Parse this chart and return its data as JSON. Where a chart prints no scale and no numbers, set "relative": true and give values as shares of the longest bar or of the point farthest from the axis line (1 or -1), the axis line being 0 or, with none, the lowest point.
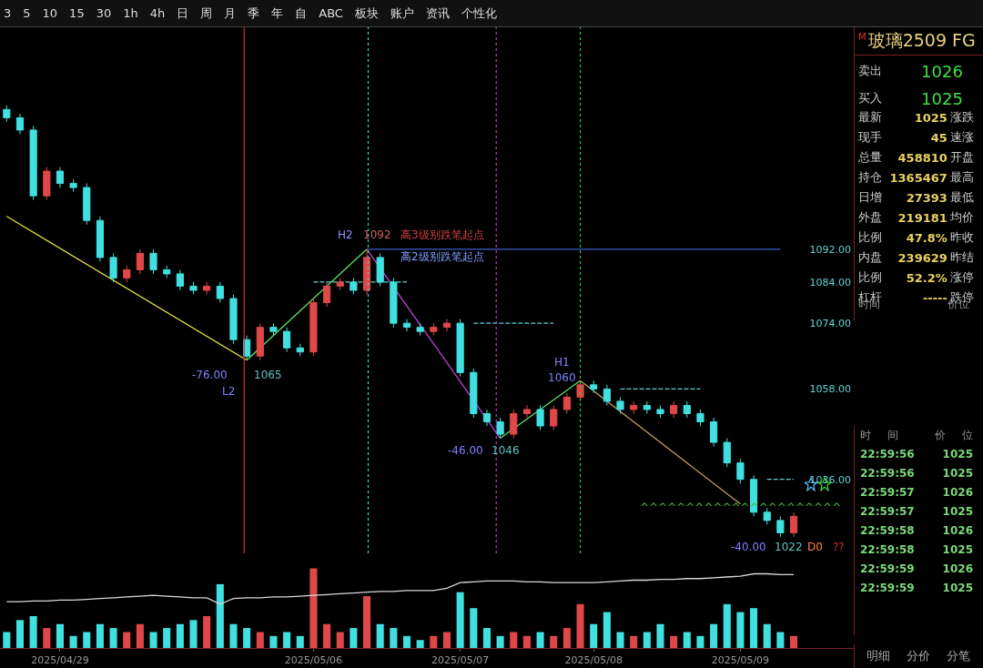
{
  "chart_data": [
    {
      "type": "other",
      "annotations": [
        "3",
        "5",
        "10",
        "15",
        "30",
        "1h",
        "4h",
        "日",
        "周",
        "月",
        "季",
        "年",
        "自",
        "ABC",
        "板块",
        "账户",
        "资讯",
        "个性化"
      ]
    },
    {
      "type": "candlestick",
      "categories": [
        null,
        null,
        null,
        null,
        null,
        null,
        null,
        null,
        null,
        null,
        null,
        null,
        null,
        null,
        null,
        null,
        null,
        null,
        null,
        null,
        null,
        null,
        null,
        null,
        null,
        null,
        null,
        null,
        null,
        null,
        null,
        null,
        null,
        null,
        null,
        null,
        null,
        null,
        null,
        null,
        null,
        null,
        null,
        null,
        null,
        null,
        null,
        null,
        null,
        null,
        null,
        null,
        null,
        null,
        null,
        null,
        null,
        null,
        null,
        null
      ],
      "ohlc": [
        [
          1126,
          1127,
          1123,
          1124
        ],
        [
          1124,
          1125,
          1120,
          1121
        ],
        [
          1121,
          1122,
          1104,
          1105
        ],
        [
          1105,
          1112,
          1104,
          1111
        ],
        [
          1111,
          1112,
          1107,
          1108
        ],
        [
          1108,
          1109,
          1106,
          1107
        ],
        [
          1107,
          1108,
          1098,
          1099
        ],
        [
          1099,
          1100,
          1089,
          1090
        ],
        [
          1090,
          1091,
          1084,
          1085
        ],
        [
          1085,
          1088,
          1084,
          1087
        ],
        [
          1087,
          1092,
          1086,
          1091
        ],
        [
          1091,
          1092,
          1086,
          1087
        ],
        [
          1087,
          1088,
          1085,
          1086
        ],
        [
          1086,
          1087,
          1082,
          1083
        ],
        [
          1083,
          1084,
          1081,
          1082
        ],
        [
          1082,
          1084,
          1081,
          1083
        ],
        [
          1083,
          1084,
          1079,
          1080
        ],
        [
          1080,
          1081,
          1069,
          1070
        ],
        [
          1070,
          1071,
          1065,
          1066
        ],
        [
          1066,
          1074,
          1065,
          1073
        ],
        [
          1073,
          1074,
          1071,
          1072
        ],
        [
          1072,
          1073,
          1067,
          1068
        ],
        [
          1068,
          1069,
          1066,
          1067
        ],
        [
          1067,
          1080,
          1066,
          1079
        ],
        [
          1079,
          1084,
          1078,
          1083
        ],
        [
          1083,
          1085,
          1082,
          1084
        ],
        [
          1084,
          1085,
          1081,
          1082
        ],
        [
          1082,
          1092,
          1081,
          1090
        ],
        [
          1090,
          1091,
          1083,
          1084
        ],
        [
          1084,
          1085,
          1073,
          1074
        ],
        [
          1074,
          1075,
          1072,
          1073
        ],
        [
          1073,
          1074,
          1071,
          1072
        ],
        [
          1072,
          1074,
          1071,
          1073
        ],
        [
          1073,
          1075,
          1072,
          1074
        ],
        [
          1074,
          1075,
          1061,
          1062
        ],
        [
          1062,
          1063,
          1051,
          1052
        ],
        [
          1052,
          1053,
          1049,
          1050
        ],
        [
          1050,
          1051,
          1046,
          1047
        ],
        [
          1047,
          1053,
          1046,
          1052
        ],
        [
          1052,
          1054,
          1051,
          1053
        ],
        [
          1053,
          1054,
          1048,
          1049
        ],
        [
          1049,
          1054,
          1048,
          1053
        ],
        [
          1053,
          1057,
          1052,
          1056
        ],
        [
          1056,
          1060,
          1055,
          1059
        ],
        [
          1059,
          1060,
          1057,
          1058
        ],
        [
          1058,
          1059,
          1054,
          1055
        ],
        [
          1055,
          1056,
          1052,
          1053
        ],
        [
          1053,
          1055,
          1052,
          1054
        ],
        [
          1054,
          1055,
          1052,
          1053
        ],
        [
          1053,
          1054,
          1051,
          1052
        ],
        [
          1052,
          1055,
          1051,
          1054
        ],
        [
          1054,
          1055,
          1051,
          1052
        ],
        [
          1052,
          1053,
          1049,
          1050
        ],
        [
          1050,
          1051,
          1044,
          1045
        ],
        [
          1045,
          1046,
          1039,
          1040
        ],
        [
          1040,
          1041,
          1035,
          1036
        ],
        [
          1036,
          1037,
          1027,
          1028
        ],
        [
          1028,
          1029,
          1025,
          1026
        ],
        [
          1026,
          1027,
          1022,
          1023
        ],
        [
          1023,
          1028,
          1022,
          1027
        ]
      ],
      "colors": [
        "#40e0e0",
        "#40e0e0",
        "#40e0e0",
        "#e04848",
        "#40e0e0",
        "#40e0e0",
        "#40e0e0",
        "#40e0e0",
        "#40e0e0",
        "#e04848",
        "#e04848",
        "#40e0e0",
        "#40e0e0",
        "#40e0e0",
        "#40e0e0",
        "#e04848",
        "#40e0e0",
        "#40e0e0",
        "#40e0e0",
        "#e04848",
        "#40e0e0",
        "#40e0e0",
        "#40e0e0",
        "#e04848",
        "#e04848",
        "#e04848",
        "#40e0e0",
        "#e04848",
        "#40e0e0",
        "#40e0e0",
        "#40e0e0",
        "#40e0e0",
        "#e04848",
        "#e04848",
        "#40e0e0",
        "#40e0e0",
        "#40e0e0",
        "#40e0e0",
        "#e04848",
        "#e04848",
        "#40e0e0",
        "#e04848",
        "#e04848",
        "#e04848",
        "#40e0e0",
        "#40e0e0",
        "#40e0e0",
        "#e04848",
        "#40e0e0",
        "#40e0e0",
        "#e04848",
        "#40e0e0",
        "#40e0e0",
        "#40e0e0",
        "#40e0e0",
        "#40e0e0",
        "#40e0e0",
        "#40e0e0",
        "#40e0e0",
        "#e04848"
      ],
      "ylim": [
        1018,
        1146
      ],
      "tick_labels": "y",
      "yticks": [
        {
          "value": 1092,
          "label": "1092.00"
        },
        {
          "value": 1084,
          "label": "1084.00"
        },
        {
          "value": 1074,
          "label": "1074.00"
        },
        {
          "value": 1058,
          "label": "1058.00"
        },
        {
          "value": 1036,
          "label": "1036.00"
        }
      ],
      "series": [
        {
          "type": "line",
          "color": "#e0e040",
          "values": [
            1100,
            null,
            null,
            null,
            null,
            null,
            null,
            null,
            null,
            null,
            null,
            null,
            null,
            null,
            null,
            null,
            null,
            null,
            1065,
            null,
            null,
            null,
            null,
            null,
            null,
            null,
            null,
            null,
            null,
            null,
            null,
            null,
            null,
            null,
            null,
            null,
            null,
            null,
            null,
            null,
            null,
            null,
            null,
            null,
            null,
            null,
            null,
            null,
            null,
            null,
            null,
            null,
            null,
            null,
            null,
            null,
            null,
            null,
            null,
            null
          ]
        },
        {
          "type": "line",
          "color": "#60e060",
          "values": [
            null,
            null,
            null,
            null,
            null,
            null,
            null,
            null,
            null,
            null,
            null,
            null,
            null,
            null,
            null,
            null,
            null,
            null,
            1065,
            null,
            null,
            null,
            null,
            null,
            null,
            null,
            null,
            1092,
            null,
            null,
            null,
            null,
            null,
            null,
            null,
            null,
            null,
            null,
            null,
            null,
            null,
            null,
            null,
            null,
            null,
            null,
            null,
            null,
            null,
            null,
            null,
            null,
            null,
            null,
            null,
            null,
            null,
            null,
            null,
            null
          ]
        },
        {
          "type": "line",
          "color": "#c040e0",
          "values": [
            null,
            null,
            null,
            null,
            null,
            null,
            null,
            null,
            null,
            null,
            null,
            null,
            null,
            null,
            null,
            null,
            null,
            null,
            null,
            null,
            null,
            null,
            null,
            null,
            null,
            null,
            null,
            1092,
            null,
            null,
            null,
            null,
            null,
            null,
            null,
            null,
            null,
            1046,
            null,
            null,
            null,
            null,
            null,
            null,
            null,
            null,
            null,
            null,
            null,
            null,
            null,
            null,
            null,
            null,
            null,
            null,
            null,
            null,
            null,
            null
          ]
        },
        {
          "type": "line",
          "color": "#60e060",
          "values": [
            null,
            null,
            null,
            null,
            null,
            null,
            null,
            null,
            null,
            null,
            null,
            null,
            null,
            null,
            null,
            null,
            null,
            null,
            null,
            null,
            null,
            null,
            null,
            null,
            null,
            null,
            null,
            null,
            null,
            null,
            null,
            null,
            null,
            null,
            null,
            null,
            null,
            1046,
            null,
            null,
            null,
            null,
            null,
            1060,
            null,
            null,
            null,
            null,
            null,
            null,
            null,
            null,
            null,
            null,
            null,
            null,
            null,
            null,
            null,
            null
          ]
        },
        {
          "type": "line",
          "color": "#c0a060",
          "values": [
            null,
            null,
            null,
            null,
            null,
            null,
            null,
            null,
            null,
            null,
            null,
            null,
            null,
            null,
            null,
            null,
            null,
            null,
            null,
            null,
            null,
            null,
            null,
            null,
            null,
            null,
            null,
            null,
            null,
            null,
            null,
            null,
            null,
            null,
            null,
            null,
            null,
            null,
            null,
            null,
            null,
            null,
            null,
            1060,
            null,
            null,
            null,
            null,
            null,
            null,
            null,
            null,
            null,
            null,
            null,
            1030,
            null,
            null,
            null,
            null
          ]
        },
        {
          "type": "line",
          "color": "#4060d0",
          "line_style": "solid",
          "values": [
            null,
            null,
            null,
            null,
            null,
            null,
            null,
            null,
            null,
            null,
            null,
            null,
            null,
            null,
            null,
            null,
            null,
            null,
            null,
            null,
            null,
            null,
            null,
            null,
            null,
            null,
            null,
            1092,
            1092,
            1092,
            1092,
            1092,
            1092,
            1092,
            1092,
            1092,
            1092,
            1092,
            1092,
            1092,
            1092,
            1092,
            1092,
            1092,
            1092,
            1092,
            1092,
            1092,
            1092,
            1092,
            1092,
            1092,
            1092,
            1092,
            1092,
            1092,
            1092,
            1092,
            1092,
            null
          ]
        },
        {
          "type": "line",
          "color": "#60d0d0",
          "line_style": "dashed",
          "values": [
            null,
            null,
            null,
            null,
            null,
            null,
            null,
            null,
            null,
            null,
            null,
            null,
            null,
            null,
            null,
            null,
            null,
            null,
            null,
            null,
            null,
            null,
            null,
            1084,
            1084,
            1084,
            1084,
            1084,
            1084,
            1084,
            1084,
            null,
            null,
            null,
            null,
            null,
            null,
            null,
            null,
            null,
            null,
            null,
            null,
            null,
            null,
            null,
            null,
            null,
            null,
            null,
            null,
            null,
            null,
            null,
            null,
            null,
            null,
            null,
            null,
            null
          ]
        },
        {
          "type": "line",
          "color": "#60d0d0",
          "line_style": "dashed",
          "values": [
            null,
            null,
            null,
            null,
            null,
            null,
            null,
            null,
            null,
            null,
            null,
            null,
            null,
            null,
            null,
            null,
            null,
            null,
            null,
            null,
            null,
            null,
            null,
            null,
            null,
            null,
            null,
            null,
            null,
            null,
            null,
            null,
            null,
            null,
            null,
            1074,
            1074,
            1074,
            1074,
            1074,
            1074,
            1074,
            null,
            null,
            null,
            null,
            null,
            null,
            null,
            null,
            null,
            null,
            null,
            null,
            null,
            null,
            null,
            null,
            null,
            null
          ]
        },
        {
          "type": "line",
          "color": "#60d0d0",
          "line_style": "dashed",
          "values": [
            null,
            null,
            null,
            null,
            null,
            null,
            null,
            null,
            null,
            null,
            null,
            null,
            null,
            null,
            null,
            null,
            null,
            null,
            null,
            null,
            null,
            null,
            null,
            null,
            null,
            null,
            null,
            null,
            null,
            null,
            null,
            null,
            null,
            null,
            null,
            null,
            null,
            null,
            null,
            null,
            null,
            null,
            null,
            null,
            null,
            null,
            1058,
            1058,
            1058,
            1058,
            1058,
            1058,
            1058,
            null,
            null,
            null,
            null,
            null,
            null,
            null
          ]
        },
        {
          "type": "line",
          "color": "#60d0d0",
          "line_style": "dashed",
          "values": [
            null,
            null,
            null,
            null,
            null,
            null,
            null,
            null,
            null,
            null,
            null,
            null,
            null,
            null,
            null,
            null,
            null,
            null,
            null,
            null,
            null,
            null,
            null,
            null,
            null,
            null,
            null,
            null,
            null,
            null,
            null,
            null,
            null,
            null,
            null,
            null,
            null,
            null,
            null,
            null,
            null,
            null,
            null,
            null,
            null,
            null,
            null,
            null,
            null,
            null,
            null,
            null,
            null,
            null,
            null,
            null,
            null,
            1036,
            1036,
            1036
          ]
        }
      ],
      "annotations": [
        "H2",
        "1092",
        "高3级别跌笔起点",
        "高2级别跌笔起点",
        "-76.00",
        "L2",
        "1065",
        "-46.00",
        "1046",
        "H1",
        "1060",
        "^^^^^^^^^^^^^^^^^^^^^^",
        "-40.00",
        "1022",
        "D0",
        "??"
      ]
    },
    {
      "type": "bar",
      "relative": true,
      "tick_labels": "x",
      "categories": [
        null,
        null,
        null,
        null,
        "2025/04/29",
        null,
        null,
        null,
        null,
        null,
        null,
        null,
        null,
        null,
        null,
        null,
        null,
        null,
        null,
        null,
        null,
        null,
        null,
        "2025/05/06",
        null,
        null,
        null,
        null,
        null,
        null,
        null,
        null,
        null,
        null,
        "2025/05/07",
        null,
        null,
        null,
        null,
        null,
        null,
        null,
        null,
        null,
        "2025/05/08",
        null,
        null,
        null,
        null,
        null,
        null,
        null,
        null,
        null,
        null,
        "2025/05/09",
        null,
        null,
        null,
        null
      ],
      "series": [
        {
          "type": "bar",
          "values": [
            0.2,
            0.35,
            0.4,
            0.25,
            0.3,
            0.15,
            0.2,
            0.3,
            0.25,
            0.2,
            0.3,
            0.2,
            0.25,
            0.3,
            0.35,
            0.4,
            0.8,
            0.3,
            0.25,
            0.2,
            0.15,
            0.2,
            0.15,
            1.0,
            0.3,
            0.2,
            0.25,
            0.65,
            0.3,
            0.25,
            0.15,
            0.1,
            0.15,
            0.2,
            0.7,
            0.5,
            0.25,
            0.15,
            0.2,
            0.15,
            0.2,
            0.15,
            0.25,
            0.55,
            0.3,
            0.45,
            0.2,
            0.15,
            0.2,
            0.3,
            0.15,
            0.2,
            0.15,
            0.3,
            0.55,
            0.45,
            0.5,
            0.3,
            0.2,
            0.15
          ],
          "colors": [
            "#40e0e0",
            "#40e0e0",
            "#40e0e0",
            "#e04848",
            "#40e0e0",
            "#40e0e0",
            "#40e0e0",
            "#40e0e0",
            "#40e0e0",
            "#e04848",
            "#e04848",
            "#40e0e0",
            "#40e0e0",
            "#40e0e0",
            "#40e0e0",
            "#e04848",
            "#40e0e0",
            "#40e0e0",
            "#40e0e0",
            "#e04848",
            "#40e0e0",
            "#40e0e0",
            "#40e0e0",
            "#e04848",
            "#e04848",
            "#e04848",
            "#40e0e0",
            "#e04848",
            "#40e0e0",
            "#40e0e0",
            "#40e0e0",
            "#40e0e0",
            "#e04848",
            "#e04848",
            "#40e0e0",
            "#40e0e0",
            "#40e0e0",
            "#40e0e0",
            "#e04848",
            "#e04848",
            "#40e0e0",
            "#e04848",
            "#e04848",
            "#e04848",
            "#40e0e0",
            "#40e0e0",
            "#40e0e0",
            "#e04848",
            "#40e0e0",
            "#40e0e0",
            "#e04848",
            "#40e0e0",
            "#40e0e0",
            "#40e0e0",
            "#40e0e0",
            "#40e0e0",
            "#40e0e0",
            "#40e0e0",
            "#40e0e0",
            "#e04848"
          ]
        },
        {
          "type": "line",
          "color": "#d8d8d8",
          "values": [
            0.58,
            0.58,
            0.59,
            0.59,
            0.6,
            0.6,
            0.61,
            0.62,
            0.63,
            0.64,
            0.65,
            0.66,
            0.65,
            0.64,
            0.63,
            0.63,
            0.55,
            0.62,
            0.63,
            0.63,
            0.64,
            0.64,
            0.65,
            0.66,
            0.67,
            0.68,
            0.69,
            0.7,
            0.71,
            0.71,
            0.72,
            0.72,
            0.72,
            0.75,
            0.82,
            0.83,
            0.84,
            0.84,
            0.84,
            0.83,
            0.83,
            0.82,
            0.82,
            0.82,
            0.82,
            0.83,
            0.84,
            0.85,
            0.85,
            0.86,
            0.86,
            0.87,
            0.87,
            0.88,
            0.89,
            0.9,
            0.93,
            0.93,
            0.92,
            0.92
          ]
        }
      ]
    },
    {
      "type": "other",
      "title": "玻璃2509 FG",
      "subtitle": "M",
      "annotations": [
        "卖出",
        "1026",
        "买入",
        "1025"
      ]
    },
    {
      "type": "other",
      "annotations": [
        "最新",
        "1025",
        "涨跌",
        "现手",
        "45",
        "速涨",
        "总量",
        "458810",
        "开盘",
        "持仓",
        "1365467",
        "最高",
        "日增",
        "27393",
        "最低",
        "外盘",
        "219181",
        "均价",
        "比例",
        "47.8%",
        "昨收",
        "内盘",
        "239629",
        "昨结",
        "比例",
        "52.2%",
        "涨停",
        "杠杆",
        "-----",
        "跌停"
      ]
    },
    {
      "type": "other",
      "annotations": [
        "时间",
        "价位"
      ]
    },
    {
      "type": "other",
      "annotations": [
        "时间 价位",
        "22:59:56 1025",
        "22:59:56 1025",
        "22:59:57 1026",
        "22:59:57 1025",
        "22:59:58 1026",
        "22:59:58 1025",
        "22:59:59 1026",
        "22:59:59 1025"
      ]
    },
    {
      "type": "other",
      "annotations": [
        "明细",
        "分价",
        "分笔"
      ]
    }
  ]
}
